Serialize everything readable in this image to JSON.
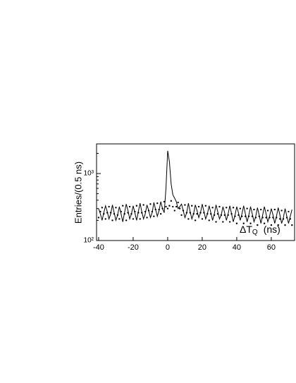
{
  "chart_data": {
    "type": "line",
    "y_label": "Entries/(0.5 ns)",
    "x_label": "ΔT",
    "x_label_sub": "Q",
    "x_label_unit": "(ns)",
    "log_y": true,
    "grid": false,
    "xlim": [
      -41.2,
      73.5
    ],
    "ylim": [
      100,
      2770
    ],
    "xticks": [
      -40,
      -20,
      0,
      20,
      40,
      60
    ],
    "yticks": [
      {
        "value": 100,
        "label": "10²"
      },
      {
        "value": 1000,
        "label": "10³"
      }
    ],
    "yminor_ticks": [
      200,
      300,
      400,
      500,
      600,
      700,
      800,
      900,
      2000
    ],
    "x": [
      -40,
      -39,
      -38,
      -37,
      -36,
      -35,
      -34,
      -33,
      -32,
      -31,
      -30,
      -29,
      -28,
      -27,
      -26,
      -25,
      -24,
      -23,
      -22,
      -21,
      -20,
      -19,
      -18,
      -17,
      -16,
      -15,
      -14,
      -13,
      -12,
      -11,
      -10,
      -9,
      -8,
      -7,
      -6,
      -5,
      -4,
      -3,
      -2,
      -1,
      0,
      1,
      2,
      3,
      4,
      5,
      6,
      7,
      8,
      9,
      10,
      11,
      12,
      13,
      14,
      15,
      16,
      17,
      18,
      19,
      20,
      21,
      22,
      23,
      24,
      25,
      26,
      27,
      28,
      29,
      30,
      31,
      32,
      33,
      34,
      35,
      36,
      37,
      38,
      39,
      40,
      41,
      42,
      43,
      44,
      45,
      46,
      47,
      48,
      49,
      50,
      51,
      52,
      53,
      54,
      55,
      56,
      57,
      58,
      59,
      60,
      61,
      62,
      63,
      64,
      65,
      66,
      67,
      68,
      69,
      70,
      71,
      72
    ],
    "series": [
      {
        "style": "line",
        "color": "#000000",
        "values": [
          300,
          250,
          200,
          260,
          330,
          270,
          210,
          250,
          340,
          260,
          200,
          240,
          320,
          250,
          190,
          260,
          350,
          280,
          210,
          250,
          330,
          260,
          200,
          270,
          360,
          270,
          210,
          250,
          340,
          280,
          220,
          260,
          370,
          290,
          230,
          280,
          380,
          300,
          260,
          600,
          2180,
          1500,
          700,
          480,
          430,
          380,
          300,
          320,
          350,
          280,
          220,
          260,
          360,
          270,
          210,
          250,
          340,
          280,
          220,
          260,
          350,
          270,
          210,
          250,
          330,
          260,
          200,
          250,
          340,
          270,
          210,
          240,
          320,
          260,
          200,
          250,
          330,
          250,
          190,
          240,
          320,
          260,
          200,
          250,
          330,
          250,
          190,
          240,
          320,
          250,
          190,
          230,
          310,
          240,
          180,
          240,
          320,
          250,
          190,
          230,
          300,
          240,
          180,
          230,
          310,
          240,
          180,
          220,
          300,
          230,
          180,
          230,
          290
        ]
      },
      {
        "style": "points",
        "color": "#000000",
        "values": [
          220,
          270,
          310,
          250,
          210,
          260,
          320,
          260,
          200,
          250,
          310,
          240,
          210,
          270,
          330,
          250,
          200,
          260,
          320,
          250,
          210,
          270,
          330,
          260,
          210,
          260,
          340,
          270,
          220,
          280,
          350,
          270,
          230,
          290,
          360,
          290,
          250,
          300,
          380,
          320,
          300,
          330,
          390,
          320,
          280,
          320,
          370,
          300,
          240,
          280,
          340,
          260,
          210,
          260,
          330,
          250,
          200,
          250,
          320,
          260,
          210,
          260,
          330,
          250,
          200,
          250,
          310,
          240,
          190,
          250,
          320,
          240,
          190,
          240,
          310,
          240,
          190,
          250,
          310,
          230,
          180,
          240,
          300,
          230,
          180,
          230,
          300,
          230,
          180,
          230,
          290,
          220,
          170,
          230,
          290,
          220,
          180,
          220,
          280,
          220,
          170,
          220,
          290,
          220,
          170,
          210,
          280,
          210,
          170,
          220,
          270,
          210,
          170
        ]
      }
    ]
  }
}
